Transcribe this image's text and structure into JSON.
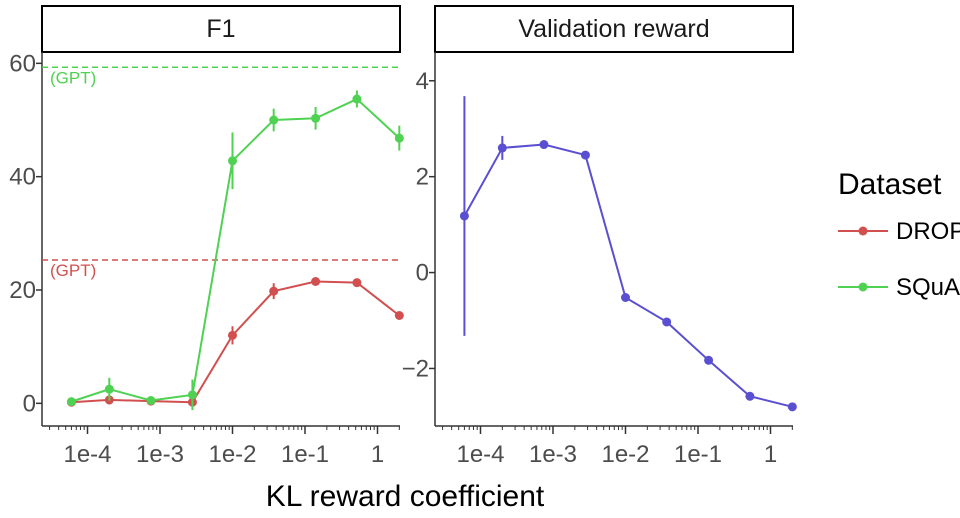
{
  "chart_data": [
    {
      "type": "line",
      "title": "F1",
      "xscale": "log",
      "x_tick_labels": [
        "1e-4",
        "1e-3",
        "1e-2",
        "1e-1",
        "1"
      ],
      "y_tick_labels": [
        "0",
        "20",
        "40",
        "60"
      ],
      "ylim": [
        -4,
        62
      ],
      "series": [
        {
          "name": "DROP",
          "color": "#d1504f",
          "x": [
            6e-05,
            0.0002,
            0.00075,
            0.0028,
            0.01,
            0.037,
            0.14,
            0.52,
            2.0
          ],
          "values": [
            0.2,
            0.6,
            0.4,
            0.2,
            12.0,
            19.8,
            21.5,
            21.3,
            15.5
          ],
          "error": [
            0.3,
            0.8,
            0.4,
            0.3,
            1.6,
            1.4,
            0.5,
            0.5,
            0.5
          ]
        },
        {
          "name": "SQuAD",
          "color": "#4fd152",
          "x": [
            6e-05,
            0.0002,
            0.00075,
            0.0028,
            0.01,
            0.037,
            0.14,
            0.52,
            2.0
          ],
          "values": [
            0.3,
            2.5,
            0.5,
            1.5,
            42.8,
            50.0,
            50.3,
            53.7,
            46.8
          ],
          "error": [
            0.4,
            2.0,
            0.4,
            2.7,
            5.0,
            2.0,
            2.0,
            1.5,
            2.2
          ]
        }
      ],
      "reference_lines": [
        {
          "label": "(GPT)",
          "value": 59.3,
          "color": "#4fd152"
        },
        {
          "label": "(GPT)",
          "value": 25.3,
          "color": "#d1504f"
        }
      ]
    },
    {
      "type": "line",
      "title": "Validation reward",
      "xscale": "log",
      "x_tick_labels": [
        "1e-4",
        "1e-3",
        "1e-2",
        "1e-1",
        "1"
      ],
      "y_tick_labels": [
        "−2",
        "0",
        "2",
        "4"
      ],
      "ylim": [
        -3.2,
        4.6
      ],
      "series": [
        {
          "color": "#5a4fd1",
          "x": [
            6e-05,
            0.0002,
            0.00075,
            0.0028,
            0.01,
            0.037,
            0.14,
            0.52,
            2.0
          ],
          "values": [
            1.18,
            2.6,
            2.67,
            2.45,
            -0.52,
            -1.03,
            -1.83,
            -2.58,
            -2.8
          ],
          "error": [
            2.5,
            0.25,
            0.06,
            0.06,
            0.06,
            0.06,
            0.06,
            0.06,
            0.06
          ]
        }
      ]
    }
  ],
  "x_axis_title": "KL reward coefficient",
  "legend": {
    "title": "Dataset",
    "entries": [
      {
        "label": "DROP",
        "color": "#d1504f"
      },
      {
        "label": "SQuAD",
        "color": "#4fd152"
      }
    ]
  }
}
